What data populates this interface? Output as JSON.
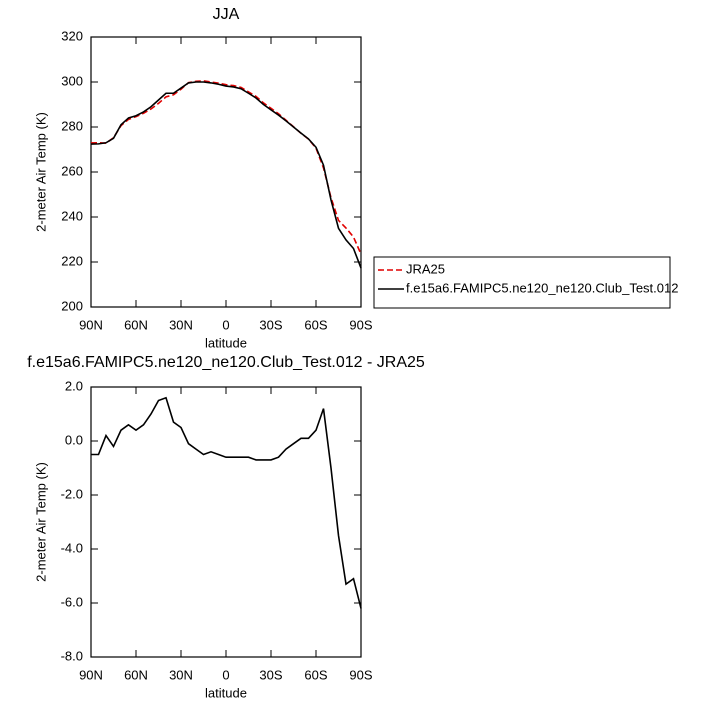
{
  "chart_data": [
    {
      "type": "line",
      "title": "JJA",
      "x_label": "latitude",
      "y_label": "2-meter Air Temp (K)",
      "x": [
        90,
        85,
        80,
        75,
        70,
        65,
        60,
        55,
        50,
        45,
        40,
        35,
        30,
        25,
        20,
        15,
        10,
        5,
        0,
        -5,
        -10,
        -15,
        -20,
        -25,
        -30,
        -35,
        -40,
        -45,
        -50,
        -55,
        -60,
        -65,
        -70,
        -75,
        -80,
        -85,
        -90
      ],
      "series": [
        {
          "name": "JRA25",
          "color": "#e00000",
          "dashed": true,
          "values": [
            272.9,
            273.0,
            272.8,
            275.2,
            280.6,
            283.4,
            284.6,
            286.1,
            288.0,
            290.5,
            293.4,
            294.3,
            296.8,
            299.7,
            300.3,
            300.5,
            300.0,
            299.5,
            298.8,
            298.4,
            297.6,
            295.6,
            293.6,
            290.7,
            288.3,
            285.9,
            283.0,
            280.1,
            277.2,
            274.6,
            270.6,
            261.8,
            248.6,
            238.5,
            235.1,
            231.1,
            223.5
          ]
        },
        {
          "name": "f.e15a6.FAMIPC5.ne120_ne120.Club_Test.012",
          "color": "#000000",
          "dashed": false,
          "values": [
            272.4,
            272.5,
            273.0,
            275.0,
            281.0,
            284.0,
            285.0,
            286.7,
            289.0,
            292.0,
            295.0,
            295.0,
            297.3,
            299.6,
            300.0,
            300.0,
            299.6,
            299.0,
            298.2,
            297.8,
            297.0,
            295.0,
            292.9,
            290.0,
            287.6,
            285.3,
            282.7,
            280.0,
            277.3,
            274.7,
            271.0,
            263.0,
            247.6,
            235.0,
            229.8,
            226.0,
            217.3
          ]
        }
      ],
      "xlim": [
        90,
        -90
      ],
      "ylim": [
        200,
        320
      ],
      "xticks": [
        {
          "value": 90,
          "label": "90N"
        },
        {
          "value": 60,
          "label": "60N"
        },
        {
          "value": 30,
          "label": "30N"
        },
        0,
        {
          "value": -30,
          "label": "30S"
        },
        {
          "value": -60,
          "label": "60S"
        },
        {
          "value": -90,
          "label": "90S"
        }
      ],
      "yticks": [
        200,
        220,
        240,
        260,
        280,
        300,
        320
      ],
      "legend": "right"
    },
    {
      "type": "line",
      "title": "f.e15a6.FAMIPC5.ne120_ne120.Club_Test.012 - JRA25",
      "x_label": "latitude",
      "y_label": "2-meter Air Temp (K)",
      "x": [
        90,
        85,
        80,
        75,
        70,
        65,
        60,
        55,
        50,
        45,
        40,
        35,
        30,
        25,
        20,
        15,
        10,
        5,
        0,
        -5,
        -10,
        -15,
        -20,
        -25,
        -30,
        -35,
        -40,
        -45,
        -50,
        -55,
        -60,
        -65,
        -70,
        -75,
        -80,
        -85,
        -90
      ],
      "series": [
        {
          "color": "#000000",
          "dashed": false,
          "values": [
            -0.5,
            -0.5,
            0.2,
            -0.2,
            0.4,
            0.6,
            0.4,
            0.6,
            1.0,
            1.5,
            1.6,
            0.7,
            0.5,
            -0.1,
            -0.3,
            -0.5,
            -0.4,
            -0.5,
            -0.6,
            -0.6,
            -0.6,
            -0.6,
            -0.7,
            -0.7,
            -0.7,
            -0.6,
            -0.3,
            -0.1,
            0.1,
            0.1,
            0.4,
            1.2,
            -1.0,
            -3.5,
            -5.3,
            -5.1,
            -6.2
          ]
        }
      ],
      "xlim": [
        90,
        -90
      ],
      "ylim": [
        -8,
        2
      ],
      "xticks": [
        {
          "value": 90,
          "label": "90N"
        },
        {
          "value": 60,
          "label": "60N"
        },
        {
          "value": 30,
          "label": "30N"
        },
        0,
        {
          "value": -30,
          "label": "30S"
        },
        {
          "value": -60,
          "label": "60S"
        },
        {
          "value": -90,
          "label": "90S"
        }
      ],
      "yticks": [
        {
          "value": -8,
          "label": "-8.0"
        },
        {
          "value": -6,
          "label": "-6.0"
        },
        {
          "value": -4,
          "label": "-4.0"
        },
        {
          "value": -2,
          "label": "-2.0"
        },
        {
          "value": 0,
          "label": "0.0"
        },
        {
          "value": 2,
          "label": "2.0"
        }
      ]
    }
  ]
}
